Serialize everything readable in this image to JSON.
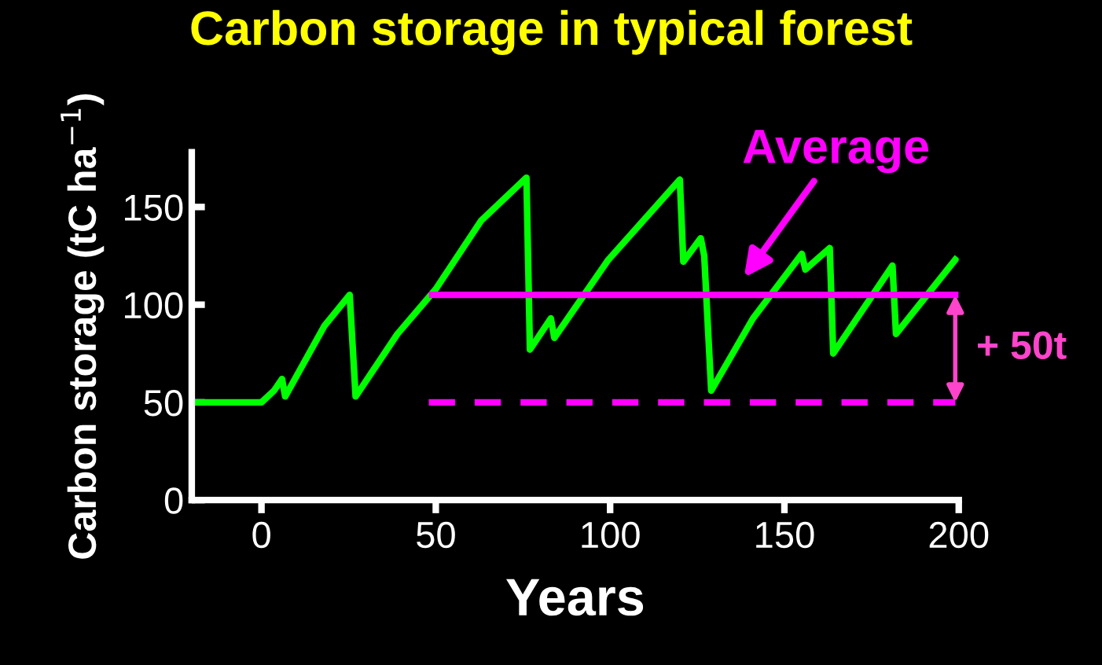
{
  "chart_data": {
    "type": "line",
    "title": "Carbon storage in typical forest",
    "xlabel": "Years",
    "ylabel": "Carbon storage (tC ha$^{−1}$)",
    "series": [
      {
        "color": "#00ff00",
        "x": [
          -20,
          0,
          3.6,
          5.9,
          6.8,
          18,
          25.3,
          27,
          39,
          50,
          63,
          76,
          77,
          83,
          84,
          99.5,
          120,
          121,
          126,
          127,
          129,
          141,
          155,
          156,
          163,
          164,
          181,
          182,
          199
        ],
        "values": [
          50,
          50,
          56,
          62,
          53,
          89,
          105,
          53,
          85,
          108,
          143,
          165,
          77,
          93,
          83,
          123,
          164,
          122,
          134,
          125,
          56,
          93,
          126,
          118,
          129,
          75,
          120,
          85,
          123
        ]
      },
      {
        "color": "#ff00ff",
        "x": [
          49,
          199
        ],
        "values": [
          105,
          105
        ]
      },
      {
        "color": "#ff00ff",
        "x": [
          48,
          199
        ],
        "values": [
          50,
          50
        ],
        "line_style": "dashed"
      }
    ],
    "annotations": [
      "Average",
      "+ 50t"
    ],
    "xlim": [
      -20,
      200
    ],
    "xticks": [
      0,
      50,
      100,
      150,
      200
    ],
    "ylim": [
      0,
      178
    ],
    "yticks": [
      0,
      50,
      100,
      150
    ],
    "grid": false,
    "marker": "none",
    "line_style": "solid"
  }
}
